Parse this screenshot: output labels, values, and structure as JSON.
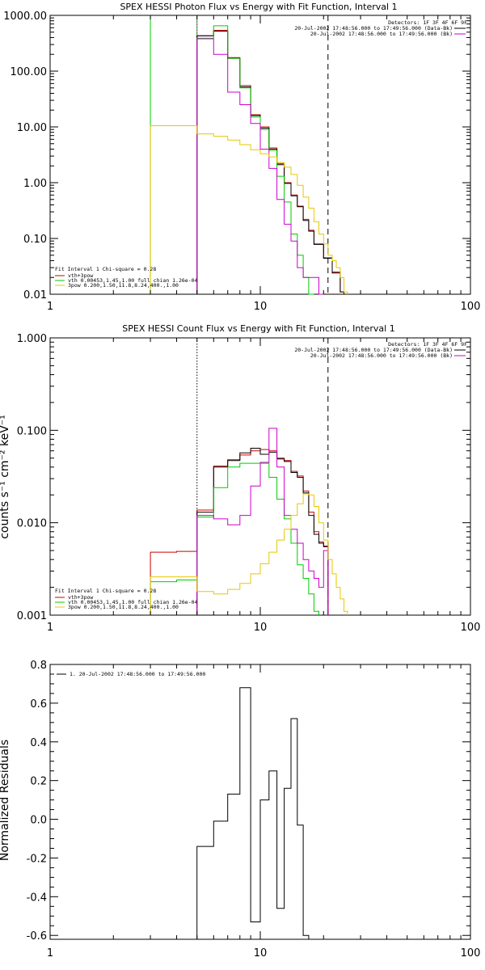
{
  "chart_data": [
    {
      "type": "line",
      "title": "SPEX HESSI Photon Flux vs Energy with Fit Function, Interval 1",
      "xscale": "log",
      "yscale": "log",
      "xlim": [
        1,
        100
      ],
      "ylim": [
        0.01,
        1000
      ],
      "x_ticks": [
        1,
        10,
        100
      ],
      "x_tick_labels": [
        "1",
        "10",
        "100"
      ],
      "y_ticks": [
        0.01,
        0.1,
        1,
        10,
        100,
        1000
      ],
      "y_tick_labels": [
        "0.01",
        "0.10",
        "1.00",
        "10.00",
        "100.00",
        "1000.00"
      ],
      "ylabel": "",
      "legend_top_right": [
        "Detectors: 1F 3F 4F 6F 9F",
        "20-Jul-2002 17:48:56.000 to 17:49:56.000 (Data-Bk)",
        "20-Jul-2002 17:48:56.000 to 17:49:56.000 (Bk)"
      ],
      "legend_bottom_left": [
        "Fit Interval 1   Chi-square = 0.28",
        "vth+3pow",
        "vth 0.00453,1.45,1.00  full chian 1.26e-04",
        "3pow 0.200,1.50,11.8,8.24,400.,1.00"
      ],
      "vlines": [
        {
          "x": 3.0,
          "style": "solid",
          "color": "#00cc00"
        },
        {
          "x": 5.0,
          "style": "solid",
          "color": "#00cc00"
        },
        {
          "x": 5.0,
          "style": "dotted",
          "color": "#cc00cc"
        },
        {
          "x": 21.0,
          "style": "dashed",
          "color": "#000000"
        }
      ],
      "edges": [
        3.0,
        4.0,
        5.0,
        6.0,
        7.0,
        8.0,
        9.0,
        10.0,
        11.0,
        12.0,
        13.0,
        14.0,
        15.0,
        16.0,
        17.0,
        18.0,
        19.0,
        20.0,
        21.0,
        22.0,
        23.0,
        24.0,
        25.0,
        26.0,
        27.0,
        28.0
      ],
      "series": [
        {
          "name": "vth+3pow",
          "color": "#cc0000",
          "values": [
            null,
            null,
            430,
            540,
            175,
            55,
            16.5,
            10,
            4.2,
            2.2,
            1.0,
            0.6,
            0.38,
            0.22,
            0.14,
            0.08,
            0.08,
            0.045,
            0.045,
            0.025,
            0.025,
            0.011,
            null,
            null,
            null
          ]
        },
        {
          "name": "Data-Bk",
          "color": "#000000",
          "values": [
            null,
            null,
            430,
            520,
            170,
            52,
            16,
            9.5,
            4.0,
            2.1,
            0.97,
            0.58,
            0.37,
            0.21,
            0.135,
            0.078,
            0.078,
            0.044,
            0.044,
            0.024,
            0.024,
            0.011,
            null,
            null,
            null
          ]
        },
        {
          "name": "vth",
          "color": "#00cc00",
          "values": [
            null,
            null,
            390,
            650,
            170,
            50,
            15,
            9.0,
            3.8,
            1.3,
            0.45,
            0.12,
            0.05,
            0.02,
            0.01,
            null,
            null,
            null,
            null,
            null,
            null,
            null,
            null,
            null,
            null
          ]
        },
        {
          "name": "Bk",
          "color": "#cc00cc",
          "values": [
            null,
            null,
            380,
            200,
            42,
            25,
            11.5,
            4.0,
            1.8,
            0.5,
            0.18,
            0.09,
            0.03,
            0.02,
            0.02,
            0.02,
            0.01,
            null,
            null,
            null,
            null,
            null,
            null,
            null,
            null
          ]
        },
        {
          "name": "3pow",
          "color": "#e6c800",
          "values": [
            10.5,
            10.5,
            7.5,
            6.8,
            5.8,
            4.8,
            3.9,
            3.3,
            2.9,
            2.3,
            1.9,
            1.4,
            0.9,
            0.55,
            0.35,
            0.2,
            0.12,
            0.08,
            0.05,
            0.04,
            0.03,
            0.02,
            0.011,
            null,
            null
          ]
        }
      ]
    },
    {
      "type": "line",
      "title": "SPEX HESSI Count Flux vs Energy with Fit Function, Interval 1",
      "xscale": "log",
      "yscale": "log",
      "xlim": [
        1,
        100
      ],
      "ylim": [
        0.001,
        1
      ],
      "x_ticks": [
        1,
        10,
        100
      ],
      "x_tick_labels": [
        "1",
        "10",
        "100"
      ],
      "y_ticks": [
        0.001,
        0.01,
        0.1,
        1
      ],
      "y_tick_labels": [
        "0.001",
        "0.010",
        "0.100",
        "1.000"
      ],
      "ylabel": "counts s⁻¹ cm⁻² keV⁻¹",
      "legend_top_right": [
        "Detectors: 1F 3F 4F 6F 9F",
        "20-Jul-2002 17:48:56.000 to 17:49:56.000 (Data-Bk)",
        "20-Jul-2002 17:48:56.000 to 17:49:56.000 (Bk)"
      ],
      "legend_bottom_left": [
        "Fit Interval 1   Chi-square = 0.28",
        "vth+3pow",
        "vth 0.00453,1.45,1.00  full chian 1.26e-04",
        "3pow 0.200,1.50,11.8,8.24,400.,1.00"
      ],
      "vlines": [
        {
          "x": 5.0,
          "style": "dotted",
          "color": "#000000"
        },
        {
          "x": 21.0,
          "style": "dashed",
          "color": "#000000"
        }
      ],
      "edges": [
        3.0,
        4.0,
        5.0,
        6.0,
        7.0,
        8.0,
        9.0,
        10.0,
        11.0,
        12.0,
        13.0,
        14.0,
        15.0,
        16.0,
        17.0,
        18.0,
        19.0,
        20.0,
        21.0,
        22.0,
        23.0,
        24.0,
        25.0,
        26.0,
        27.0,
        28.0
      ],
      "series": [
        {
          "name": "vth+3pow",
          "color": "#cc0000",
          "values": [
            0.0048,
            0.0049,
            0.0137,
            0.041,
            0.048,
            0.054,
            0.06,
            0.062,
            0.06,
            0.05,
            0.047,
            0.036,
            0.032,
            0.022,
            0.013,
            0.008,
            0.0062,
            0.0056,
            null,
            null,
            null,
            null,
            null,
            null,
            null
          ]
        },
        {
          "name": "Data-Bk",
          "color": "#000000",
          "values": [
            null,
            null,
            0.013,
            0.04,
            0.047,
            0.057,
            0.064,
            0.055,
            0.058,
            0.049,
            0.046,
            0.035,
            0.031,
            0.021,
            0.012,
            0.0075,
            0.006,
            0.0055,
            null,
            null,
            null,
            null,
            null,
            null,
            null
          ]
        },
        {
          "name": "vth",
          "color": "#00cc00",
          "values": [
            0.0023,
            0.0024,
            0.0115,
            0.024,
            0.04,
            0.044,
            0.044,
            0.044,
            0.031,
            0.018,
            0.011,
            0.006,
            0.0035,
            0.0025,
            0.0017,
            0.0011,
            null,
            null,
            null,
            null,
            null,
            null,
            null,
            null,
            null
          ]
        },
        {
          "name": "Bk",
          "color": "#cc00cc",
          "values": [
            null,
            null,
            0.012,
            0.011,
            0.0095,
            0.012,
            0.025,
            0.045,
            0.105,
            0.04,
            0.012,
            0.0085,
            0.006,
            0.004,
            0.003,
            0.0025,
            0.002,
            0.005,
            null,
            null,
            null,
            null,
            null,
            null,
            null
          ]
        },
        {
          "name": "3pow",
          "color": "#e6c800",
          "values": [
            0.0026,
            0.0026,
            0.0018,
            0.0017,
            0.0019,
            0.0022,
            0.0028,
            0.0036,
            0.0048,
            0.0065,
            0.0085,
            0.012,
            0.016,
            0.0205,
            0.02,
            0.015,
            0.01,
            0.0065,
            0.004,
            0.0028,
            0.002,
            0.0015,
            0.0011,
            null,
            null
          ]
        }
      ]
    },
    {
      "type": "line",
      "title": "",
      "xscale": "log",
      "yscale": "linear",
      "xlim": [
        1,
        100
      ],
      "ylim": [
        -0.62,
        0.8
      ],
      "x_ticks": [
        1,
        10,
        100
      ],
      "x_tick_labels": [
        "1",
        "10",
        "100"
      ],
      "y_ticks": [
        -0.6,
        -0.4,
        -0.2,
        0.0,
        0.2,
        0.4,
        0.6,
        0.8
      ],
      "y_tick_labels": [
        "-0.6",
        "-0.4",
        "-0.2",
        "0.0",
        "0.2",
        "0.4",
        "0.6",
        "0.8"
      ],
      "ylabel": "Normalized Residuals",
      "legend": "1. 20-Jul-2002 17:48:56.000 to 17:49:56.000",
      "edges": [
        5.0,
        6.0,
        7.0,
        8.0,
        9.0,
        10.0,
        11.0,
        12.0,
        13.0,
        14.0,
        15.0,
        16.0,
        17.0,
        18.0,
        19.0,
        20.0
      ],
      "series": [
        {
          "name": "1. 20-Jul-2002 17:48:56.000 to 17:49:56.000",
          "color": "#000000",
          "values": [
            -0.14,
            -0.01,
            0.13,
            0.68,
            -0.53,
            0.1,
            0.25,
            -0.46,
            0.16,
            0.52,
            -0.03,
            -0.6,
            -0.62,
            null,
            null
          ]
        }
      ]
    }
  ]
}
